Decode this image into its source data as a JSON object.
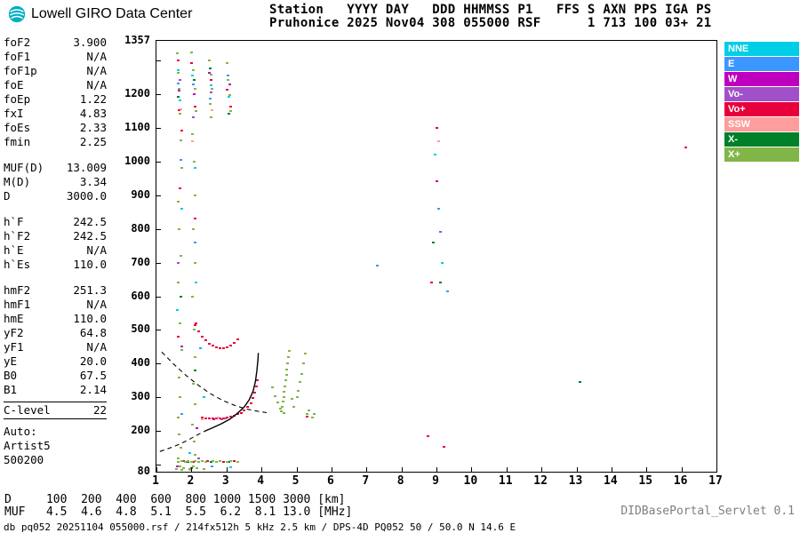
{
  "header": {
    "logo_text": "Lowell GIRO Data Center",
    "line1": "Station   YYYY DAY   DDD HHMMSS P1   FFS S AXN PPS IGA PS",
    "line2": "Pruhonice 2025 Nov04 308 055000 RSF      1 713 100 03+ 21"
  },
  "params": {
    "groups": [
      {
        "rows": [
          [
            "foF2",
            "3.900"
          ],
          [
            "foF1",
            "N/A"
          ],
          [
            "foF1p",
            "N/A"
          ],
          [
            "foE",
            "N/A"
          ],
          [
            "foEp",
            "1.22"
          ],
          [
            "fxI",
            "4.83"
          ],
          [
            "foEs",
            "2.33"
          ],
          [
            "fmin",
            "2.25"
          ]
        ]
      },
      {
        "rows": [
          [
            "MUF(D)",
            "13.009"
          ],
          [
            "M(D)",
            "3.34"
          ],
          [
            "D",
            "3000.0"
          ]
        ]
      },
      {
        "rows": [
          [
            "h`F",
            "242.5"
          ],
          [
            "h`F2",
            "242.5"
          ],
          [
            "h`E",
            "N/A"
          ],
          [
            "h`Es",
            "110.0"
          ]
        ]
      },
      {
        "rows": [
          [
            "hmF2",
            "251.3"
          ],
          [
            "hmF1",
            "N/A"
          ],
          [
            "hmE",
            "110.0"
          ],
          [
            "yF2",
            "64.8"
          ],
          [
            "yF1",
            "N/A"
          ],
          [
            "yE",
            "20.0"
          ],
          [
            "B0",
            "67.5"
          ],
          [
            "B1",
            "2.14"
          ]
        ]
      },
      {
        "boxed": true,
        "rows": [
          [
            "C-level",
            "22"
          ]
        ]
      },
      {
        "lines": [
          "Auto:",
          "Artist5",
          "500200"
        ]
      }
    ]
  },
  "muf_table": {
    "d_label": "D",
    "d_values": [
      "100",
      "200",
      "400",
      "600",
      "800",
      "1000",
      "1500",
      "3000"
    ],
    "d_unit": "[km]",
    "muf_label": "MUF",
    "muf_values": [
      "4.5",
      "4.6",
      "4.8",
      "5.1",
      "5.5",
      "6.2",
      "8.1",
      "13.0"
    ],
    "muf_unit": "[MHz]"
  },
  "footer": {
    "servlet": "DIDBasePortal_Servlet 0.1",
    "status": "db pq052 20251104 055000.rsf / 214fx512h 5 kHz 2.5 km / DPS-4D PQ052 50 / 50.0 N 14.6 E"
  },
  "chart_data": {
    "type": "scatter",
    "x_axis": {
      "min": 1,
      "max": 17,
      "ticks": [
        1,
        2,
        3,
        4,
        5,
        6,
        7,
        8,
        9,
        10,
        11,
        12,
        13,
        14,
        15,
        16,
        17
      ],
      "unit": "MHz"
    },
    "y_axis": {
      "min": 80,
      "max": 1357,
      "tick_labels": [
        1357,
        1200,
        1100,
        1000,
        900,
        800,
        700,
        600,
        500,
        400,
        300,
        200,
        80
      ],
      "unit": "km"
    },
    "legend_position": "top-right",
    "series": [
      {
        "name": "NNE",
        "key": "nne",
        "color": "#00CDE6",
        "points": [
          [
            1.62,
            1270
          ],
          [
            1.66,
            1180
          ],
          [
            1.7,
            860
          ],
          [
            1.58,
            560
          ],
          [
            2.02,
            1255
          ],
          [
            2.08,
            980
          ],
          [
            2.12,
            640
          ],
          [
            2.55,
            1225
          ],
          [
            3.05,
            1190
          ],
          [
            2.35,
            300
          ],
          [
            1.95,
            135
          ],
          [
            8.95,
            1020
          ],
          [
            9.15,
            700
          ],
          [
            3.1,
            92
          ]
        ]
      },
      {
        "name": "E",
        "key": "e",
        "color": "#3C96FF",
        "points": [
          [
            1.6,
            1230
          ],
          [
            1.68,
            1005
          ],
          [
            2.05,
            1228
          ],
          [
            2.1,
            760
          ],
          [
            2.52,
            1185
          ],
          [
            3.02,
            1255
          ],
          [
            2.58,
            96
          ],
          [
            9.05,
            860
          ],
          [
            9.3,
            615
          ],
          [
            2.25,
            445
          ],
          [
            1.72,
            250
          ],
          [
            7.3,
            690
          ]
        ]
      },
      {
        "name": "W",
        "key": "w",
        "color": "#BE00BE",
        "points": [
          [
            1.64,
            1210
          ],
          [
            2.06,
            1198
          ],
          [
            2.5,
            1262
          ],
          [
            3.08,
            1228
          ],
          [
            1.7,
            450
          ],
          [
            2.15,
            210
          ],
          [
            2.62,
            236
          ],
          [
            9.0,
            940
          ],
          [
            1.58,
            96
          ]
        ]
      },
      {
        "name": "Vo-",
        "key": "vo-minus",
        "color": "#A050C8",
        "points": [
          [
            1.66,
            1242
          ],
          [
            2.04,
            1130
          ],
          [
            2.56,
            1205
          ],
          [
            1.62,
            700
          ],
          [
            2.85,
            236
          ],
          [
            2.95,
            238
          ],
          [
            9.1,
            790
          ],
          [
            2.2,
            120
          ]
        ]
      },
      {
        "name": "Vo+",
        "key": "vo-plus",
        "color": "#E8003C",
        "points": [
          [
            1.6,
            1300
          ],
          [
            1.64,
            1152
          ],
          [
            1.7,
            1090
          ],
          [
            2.0,
            1290
          ],
          [
            2.1,
            1162
          ],
          [
            2.54,
            1240
          ],
          [
            3.0,
            1212
          ],
          [
            3.12,
            1162
          ],
          [
            1.66,
            920
          ],
          [
            2.08,
            830
          ],
          [
            1.62,
            480
          ],
          [
            2.12,
            520
          ],
          [
            16.1,
            1040
          ],
          [
            9.0,
            1100
          ],
          [
            8.85,
            640
          ],
          [
            9.2,
            155
          ],
          [
            8.75,
            185
          ],
          [
            1.75,
            112
          ],
          [
            2.05,
            110
          ],
          [
            2.45,
            112
          ],
          [
            2.9,
            110
          ],
          [
            3.2,
            112
          ],
          [
            5.3,
            242
          ],
          [
            2.3,
            240
          ],
          [
            2.4,
            238
          ],
          [
            2.5,
            237
          ],
          [
            2.6,
            237
          ],
          [
            2.7,
            238
          ],
          [
            2.8,
            238
          ],
          [
            2.9,
            239
          ],
          [
            3.0,
            241
          ],
          [
            3.1,
            243
          ],
          [
            3.2,
            246
          ],
          [
            3.3,
            250
          ],
          [
            3.4,
            255
          ],
          [
            3.5,
            262
          ],
          [
            3.6,
            272
          ],
          [
            3.68,
            284
          ],
          [
            3.75,
            298
          ],
          [
            3.8,
            314
          ],
          [
            3.84,
            332
          ],
          [
            3.87,
            352
          ],
          [
            2.1,
            515
          ],
          [
            2.2,
            496
          ],
          [
            2.3,
            481
          ],
          [
            2.4,
            469
          ],
          [
            2.5,
            460
          ],
          [
            2.6,
            453
          ],
          [
            2.7,
            449
          ],
          [
            2.8,
            447
          ],
          [
            2.9,
            447
          ],
          [
            3.0,
            449
          ],
          [
            3.1,
            454
          ],
          [
            3.2,
            461
          ],
          [
            3.3,
            471
          ]
        ]
      },
      {
        "name": "SSW",
        "key": "ssw",
        "color": "#FF9C9C",
        "points": [
          [
            1.68,
            1155
          ],
          [
            2.02,
            1060
          ],
          [
            2.58,
            1152
          ],
          [
            2.3,
            236
          ],
          [
            2.75,
            241
          ],
          [
            9.05,
            1060
          ],
          [
            1.95,
            86
          ]
        ]
      },
      {
        "name": "X-",
        "key": "x-minus",
        "color": "#008028",
        "points": [
          [
            1.62,
            1192
          ],
          [
            2.07,
            1242
          ],
          [
            2.53,
            1276
          ],
          [
            3.06,
            1142
          ],
          [
            1.68,
            600
          ],
          [
            2.1,
            380
          ],
          [
            1.9,
            110
          ],
          [
            2.55,
            110
          ],
          [
            3.05,
            110
          ],
          [
            2.0,
            90
          ],
          [
            8.9,
            760
          ],
          [
            9.1,
            640
          ],
          [
            13.1,
            345
          ]
        ]
      },
      {
        "name": "X+",
        "key": "x-plus",
        "color": "#82B548",
        "points": [
          [
            1.58,
            1320
          ],
          [
            1.6,
            1262
          ],
          [
            1.63,
            1215
          ],
          [
            1.66,
            1140
          ],
          [
            1.69,
            1062
          ],
          [
            1.72,
            980
          ],
          [
            1.6,
            880
          ],
          [
            1.64,
            800
          ],
          [
            1.68,
            720
          ],
          [
            1.61,
            640
          ],
          [
            1.65,
            520
          ],
          [
            1.7,
            440
          ],
          [
            1.63,
            360
          ],
          [
            1.67,
            300
          ],
          [
            1.6,
            240
          ],
          [
            1.64,
            190
          ],
          [
            1.68,
            150
          ],
          [
            1.62,
            120
          ],
          [
            1.66,
            96
          ],
          [
            1.7,
            86
          ],
          [
            2.0,
            1322
          ],
          [
            2.04,
            1270
          ],
          [
            2.08,
            1216
          ],
          [
            2.12,
            1150
          ],
          [
            2.02,
            1080
          ],
          [
            2.06,
            1000
          ],
          [
            2.1,
            900
          ],
          [
            2.04,
            800
          ],
          [
            2.08,
            700
          ],
          [
            2.02,
            600
          ],
          [
            2.06,
            500
          ],
          [
            2.1,
            420
          ],
          [
            2.04,
            340
          ],
          [
            2.08,
            280
          ],
          [
            2.02,
            220
          ],
          [
            2.06,
            170
          ],
          [
            2.1,
            130
          ],
          [
            2.04,
            96
          ],
          [
            2.5,
            1300
          ],
          [
            2.54,
            1256
          ],
          [
            2.58,
            1216
          ],
          [
            2.52,
            1170
          ],
          [
            2.56,
            1130
          ],
          [
            3.0,
            1290
          ],
          [
            3.04,
            1242
          ],
          [
            3.08,
            1196
          ],
          [
            3.12,
            1150
          ],
          [
            1.6,
            110
          ],
          [
            1.7,
            112
          ],
          [
            1.8,
            110
          ],
          [
            1.9,
            112
          ],
          [
            2.0,
            110
          ],
          [
            2.1,
            112
          ],
          [
            2.2,
            110
          ],
          [
            2.3,
            112
          ],
          [
            2.4,
            110
          ],
          [
            2.6,
            112
          ],
          [
            2.7,
            110
          ],
          [
            2.8,
            112
          ],
          [
            3.0,
            110
          ],
          [
            3.1,
            112
          ],
          [
            3.3,
            110
          ],
          [
            1.55,
            88
          ],
          [
            1.75,
            90
          ],
          [
            1.95,
            88
          ],
          [
            2.15,
            90
          ],
          [
            2.35,
            88
          ],
          [
            4.55,
            258
          ],
          [
            4.58,
            272
          ],
          [
            4.6,
            287
          ],
          [
            4.62,
            302
          ],
          [
            4.64,
            318
          ],
          [
            4.66,
            334
          ],
          [
            4.68,
            350
          ],
          [
            4.7,
            366
          ],
          [
            4.72,
            384
          ],
          [
            4.74,
            402
          ],
          [
            4.76,
            420
          ],
          [
            4.78,
            438
          ],
          [
            4.62,
            255
          ],
          [
            4.52,
            268
          ],
          [
            4.45,
            285
          ],
          [
            4.38,
            305
          ],
          [
            4.3,
            330
          ],
          [
            4.85,
            295
          ],
          [
            4.9,
            272
          ],
          [
            5.0,
            300
          ],
          [
            5.05,
            320
          ],
          [
            5.1,
            345
          ],
          [
            5.15,
            370
          ],
          [
            5.2,
            400
          ],
          [
            5.25,
            430
          ],
          [
            5.3,
            250
          ],
          [
            5.35,
            262
          ],
          [
            5.45,
            240
          ],
          [
            5.5,
            252
          ]
        ]
      }
    ],
    "curves": [
      {
        "name": "transmission-curve",
        "dash": true,
        "points": [
          [
            1.15,
            435
          ],
          [
            1.5,
            398
          ],
          [
            1.85,
            365
          ],
          [
            2.2,
            336
          ],
          [
            2.55,
            311
          ],
          [
            2.9,
            291
          ],
          [
            3.25,
            276
          ],
          [
            3.6,
            265
          ],
          [
            3.95,
            258
          ],
          [
            4.15,
            255
          ]
        ]
      },
      {
        "name": "e-valley-profile-curve",
        "dash": true,
        "points": [
          [
            1.1,
            140
          ],
          [
            1.35,
            149
          ],
          [
            1.6,
            159
          ],
          [
            1.85,
            171
          ],
          [
            2.08,
            184
          ],
          [
            2.28,
            195
          ],
          [
            2.38,
            200
          ]
        ]
      },
      {
        "name": "f-true-height-profile-curve",
        "dash": false,
        "points": [
          [
            2.38,
            200
          ],
          [
            2.6,
            210
          ],
          [
            2.85,
            222
          ],
          [
            3.1,
            236
          ],
          [
            3.3,
            252
          ],
          [
            3.5,
            271
          ],
          [
            3.65,
            293
          ],
          [
            3.76,
            318
          ],
          [
            3.83,
            348
          ],
          [
            3.87,
            380
          ],
          [
            3.9,
            412
          ],
          [
            3.91,
            432
          ]
        ]
      }
    ]
  }
}
